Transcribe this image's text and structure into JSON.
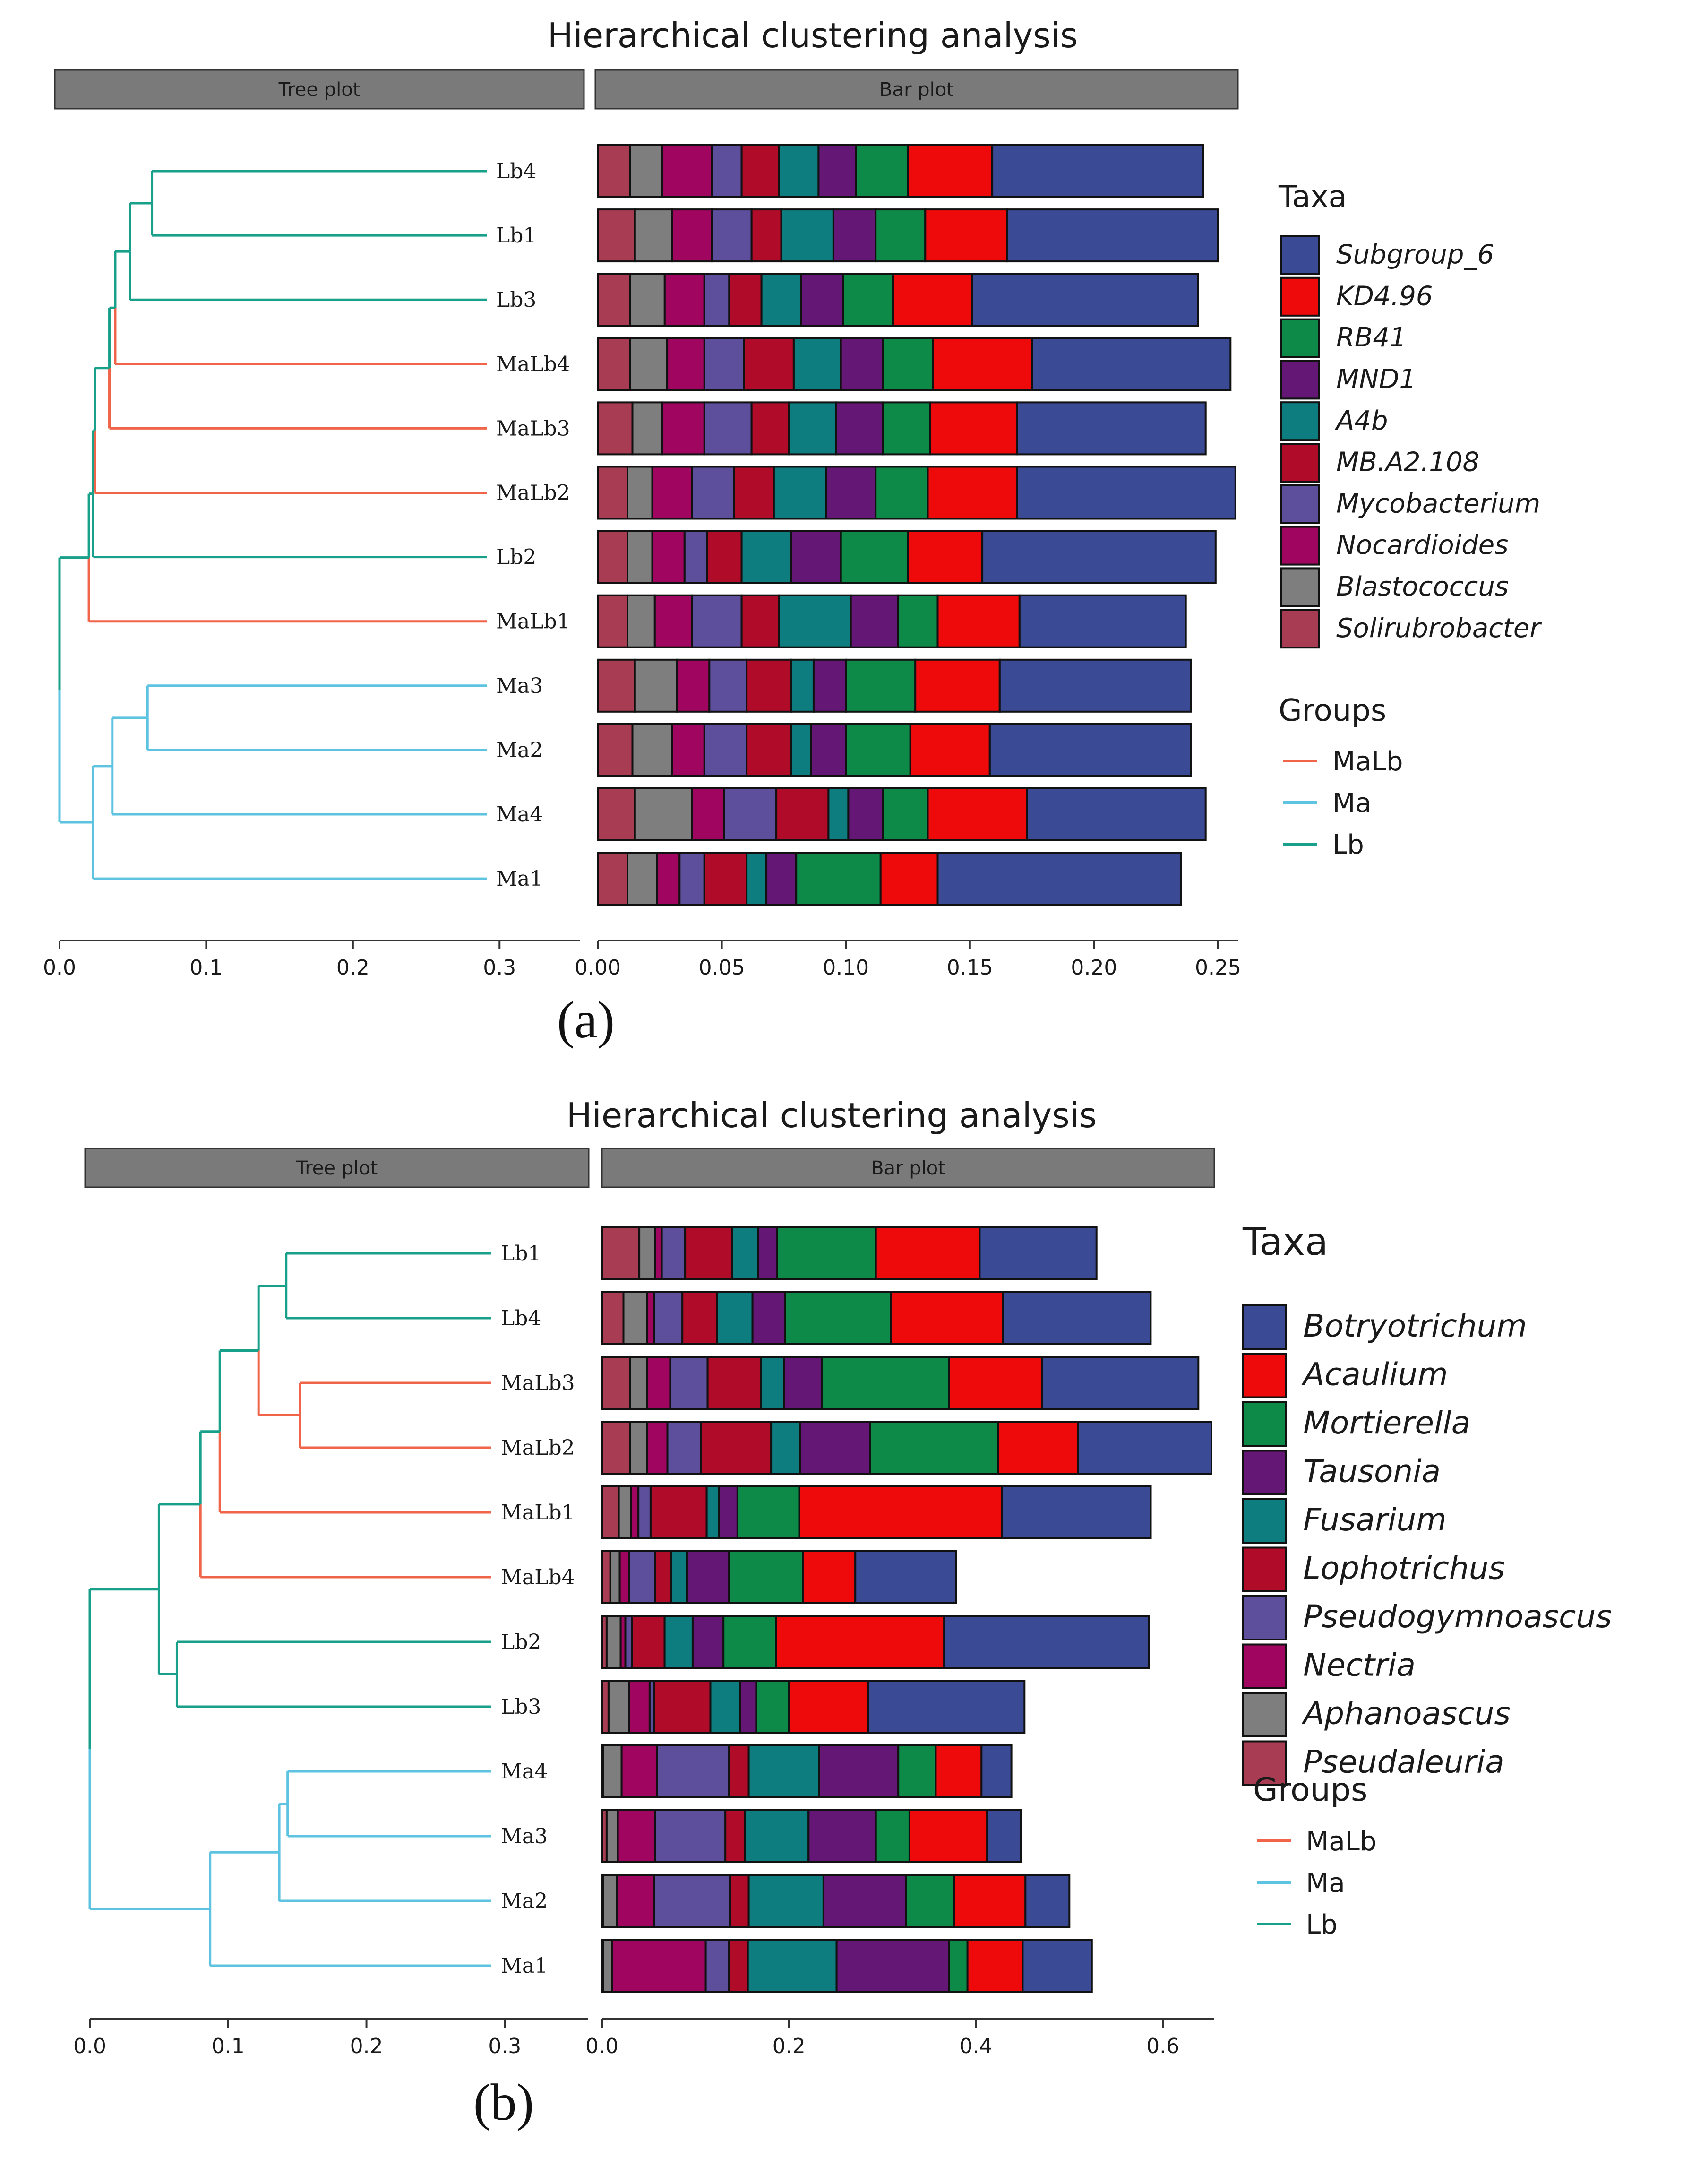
{
  "colors": {
    "taxa": [
      "#3a4a94",
      "#ee0a0a",
      "#0d8a48",
      "#651775",
      "#0e7d80",
      "#b00b28",
      "#5d4f9b",
      "#a0065f",
      "#7e7e7e",
      "#a83c53"
    ],
    "groups": {
      "MaLb": "#f0644a",
      "Ma": "#5ec3e1",
      "Lb": "#18a08a"
    },
    "strip": "#7a7a7a"
  },
  "chart_data": [
    {
      "type": "bar",
      "panel_label": "(a)",
      "title": "Hierarchical clustering analysis",
      "strip_tree": "Tree plot",
      "strip_bar": "Bar plot",
      "legend_taxa_title": "Taxa",
      "legend_groups_title": "Groups",
      "group_names": [
        "MaLb",
        "Ma",
        "Lb"
      ],
      "taxa": [
        "Subgroup_6",
        "KD4.96",
        "RB41",
        "MND1",
        "A4b",
        "MB.A2.108",
        "Mycobacterium",
        "Nocardioides",
        "Blastococcus",
        "Solirubrobacter"
      ],
      "samples": [
        "Lb4",
        "Lb1",
        "Lb3",
        "MaLb4",
        "MaLb3",
        "MaLb2",
        "Lb2",
        "MaLb1",
        "Ma3",
        "Ma2",
        "Ma4",
        "Ma1"
      ],
      "bar_xlim": [
        0,
        0.258
      ],
      "bar_xticks": [
        0.0,
        0.05,
        0.1,
        0.15,
        0.2,
        0.25
      ],
      "bar_xtick_labels": [
        "0.00",
        "0.05",
        "0.10",
        "0.15",
        "0.20",
        "0.25"
      ],
      "tree_xlim": [
        0,
        0.355
      ],
      "tree_xticks": [
        0.0,
        0.1,
        0.2,
        0.3
      ],
      "tree_xtick_labels": [
        "0.0",
        "0.1",
        "0.2",
        "0.3"
      ],
      "series_values": [
        [
          0.085,
          0.085,
          0.091,
          0.08,
          0.076,
          0.088,
          0.094,
          0.067,
          0.077,
          0.081,
          0.072,
          0.098
        ],
        [
          0.034,
          0.033,
          0.032,
          0.04,
          0.035,
          0.036,
          0.03,
          0.033,
          0.034,
          0.032,
          0.04,
          0.023
        ],
        [
          0.021,
          0.02,
          0.02,
          0.02,
          0.019,
          0.021,
          0.027,
          0.016,
          0.028,
          0.026,
          0.018,
          0.034
        ],
        [
          0.015,
          0.017,
          0.017,
          0.017,
          0.019,
          0.02,
          0.02,
          0.019,
          0.013,
          0.014,
          0.014,
          0.012
        ],
        [
          0.016,
          0.021,
          0.016,
          0.019,
          0.019,
          0.021,
          0.02,
          0.029,
          0.009,
          0.008,
          0.008,
          0.008
        ],
        [
          0.015,
          0.012,
          0.013,
          0.02,
          0.015,
          0.016,
          0.014,
          0.015,
          0.018,
          0.018,
          0.021,
          0.017
        ],
        [
          0.012,
          0.016,
          0.01,
          0.016,
          0.019,
          0.017,
          0.009,
          0.02,
          0.015,
          0.017,
          0.021,
          0.01
        ],
        [
          0.02,
          0.016,
          0.016,
          0.015,
          0.017,
          0.016,
          0.013,
          0.015,
          0.013,
          0.013,
          0.013,
          0.009
        ],
        [
          0.013,
          0.015,
          0.014,
          0.015,
          0.012,
          0.01,
          0.01,
          0.011,
          0.017,
          0.016,
          0.023,
          0.012
        ],
        [
          0.013,
          0.015,
          0.013,
          0.013,
          0.014,
          0.012,
          0.012,
          0.012,
          0.015,
          0.014,
          0.015,
          0.012
        ]
      ],
      "sample_groups": [
        "Lb",
        "Lb",
        "Lb",
        "MaLb",
        "MaLb",
        "MaLb",
        "Lb",
        "MaLb",
        "Ma",
        "Ma",
        "Ma",
        "Ma"
      ],
      "dendrogram_heights": {
        "Lb4_Lb1": 0.063,
        "Lb4Lb1_Lb3": 0.048,
        "C3_MaLb4": 0.038,
        "C4_MaLb3": 0.034,
        "C5_MaLb2": 0.024,
        "C6_Lb2": 0.023,
        "C7_MaLb1": 0.02,
        "Ma3_Ma2": 0.06,
        "Ma32_Ma4": 0.036,
        "Ma_Ma1": 0.023,
        "root": 0.0
      }
    },
    {
      "type": "bar",
      "panel_label": "(b)",
      "title": "Hierarchical clustering analysis",
      "strip_tree": "Tree plot",
      "strip_bar": "Bar plot",
      "legend_taxa_title": "Taxa",
      "legend_groups_title": "Groups",
      "group_names": [
        "MaLb",
        "Ma",
        "Lb"
      ],
      "taxa": [
        "Botryotrichum",
        "Acaulium",
        "Mortierella",
        "Tausonia",
        "Fusarium",
        "Lophotrichus",
        "Pseudogymnoascus",
        "Nectria",
        "Aphanoascus",
        "Pseudaleuria"
      ],
      "samples": [
        "Lb1",
        "Lb4",
        "MaLb3",
        "MaLb2",
        "MaLb1",
        "MaLb4",
        "Lb2",
        "Lb3",
        "Ma4",
        "Ma3",
        "Ma2",
        "Ma1"
      ],
      "bar_xlim": [
        0,
        0.655
      ],
      "bar_xticks": [
        0.0,
        0.2,
        0.4,
        0.6
      ],
      "bar_xtick_labels": [
        "0.0",
        "0.2",
        "0.4",
        "0.6"
      ],
      "tree_xlim": [
        0,
        0.36
      ],
      "tree_xticks": [
        0.0,
        0.1,
        0.2,
        0.3
      ],
      "tree_xtick_labels": [
        "0.0",
        "0.1",
        "0.2",
        "0.3"
      ],
      "series_values": [
        [
          0.125,
          0.158,
          0.167,
          0.143,
          0.159,
          0.108,
          0.219,
          0.167,
          0.032,
          0.036,
          0.047,
          0.074
        ],
        [
          0.111,
          0.12,
          0.1,
          0.085,
          0.217,
          0.056,
          0.18,
          0.085,
          0.049,
          0.083,
          0.076,
          0.059
        ],
        [
          0.106,
          0.113,
          0.136,
          0.137,
          0.066,
          0.079,
          0.056,
          0.035,
          0.04,
          0.036,
          0.052,
          0.02
        ],
        [
          0.02,
          0.035,
          0.04,
          0.075,
          0.02,
          0.045,
          0.033,
          0.017,
          0.085,
          0.072,
          0.088,
          0.12
        ],
        [
          0.028,
          0.038,
          0.025,
          0.031,
          0.013,
          0.017,
          0.03,
          0.032,
          0.075,
          0.068,
          0.08,
          0.095
        ],
        [
          0.05,
          0.037,
          0.057,
          0.075,
          0.06,
          0.017,
          0.035,
          0.06,
          0.021,
          0.021,
          0.02,
          0.02
        ],
        [
          0.025,
          0.03,
          0.04,
          0.036,
          0.013,
          0.028,
          0.007,
          0.005,
          0.077,
          0.075,
          0.081,
          0.025
        ],
        [
          0.007,
          0.008,
          0.025,
          0.022,
          0.008,
          0.01,
          0.005,
          0.022,
          0.038,
          0.04,
          0.04,
          0.1
        ],
        [
          0.017,
          0.025,
          0.018,
          0.018,
          0.013,
          0.01,
          0.015,
          0.022,
          0.02,
          0.012,
          0.015,
          0.01
        ],
        [
          0.04,
          0.023,
          0.03,
          0.03,
          0.018,
          0.009,
          0.005,
          0.007,
          0.001,
          0.005,
          0.001,
          0.001
        ]
      ],
      "sample_groups": [
        "Lb",
        "Lb",
        "MaLb",
        "MaLb",
        "MaLb",
        "MaLb",
        "Lb",
        "Lb",
        "Ma",
        "Ma",
        "Ma",
        "Ma"
      ],
      "dendrogram_heights": {
        "Lb1_Lb4": 0.142,
        "MaLb3_MaLb2": 0.152,
        "LbA_MaLbA": 0.122,
        "C_MaLb1": 0.094,
        "C_MaLb4": 0.08,
        "Lb2_Lb3": 0.063,
        "Lb_all": 0.05,
        "Ma4_Ma3": 0.143,
        "Ma43_Ma2": 0.137,
        "Ma_Ma1": 0.087,
        "root": 0.0
      }
    }
  ]
}
